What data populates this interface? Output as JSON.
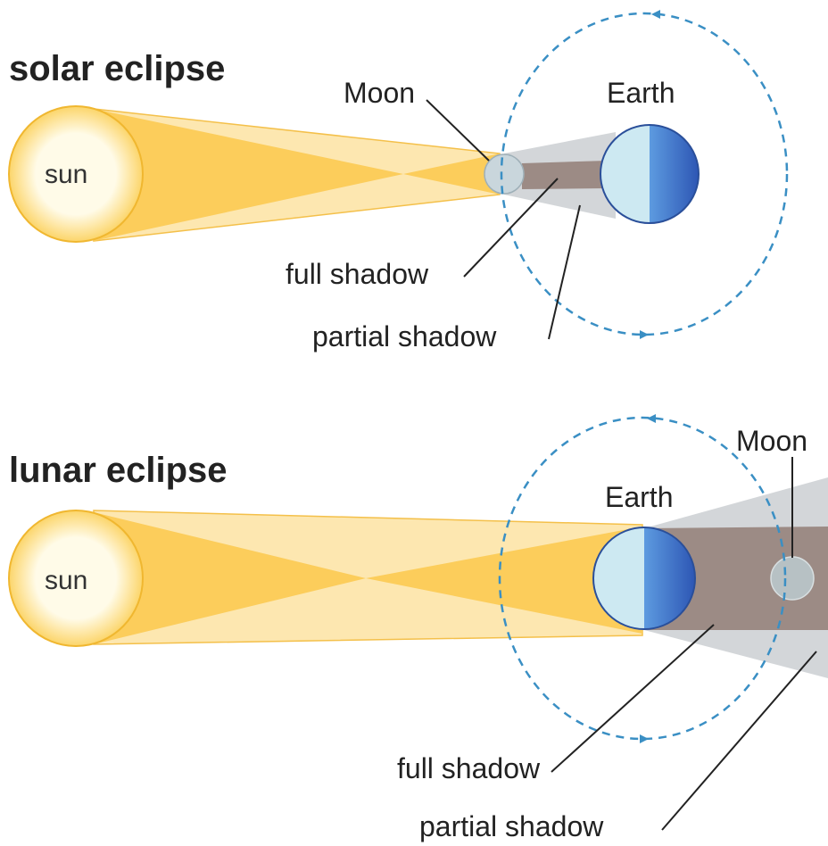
{
  "panels": [
    {
      "title": "solar eclipse",
      "sun": "sun",
      "moon": "Moon",
      "earth": "Earth",
      "full_shadow": "full shadow",
      "partial_shadow": "partial shadow"
    },
    {
      "title": "lunar eclipse",
      "sun": "sun",
      "moon": "Moon",
      "earth": "Earth",
      "full_shadow": "full shadow",
      "partial_shadow": "partial shadow"
    }
  ]
}
